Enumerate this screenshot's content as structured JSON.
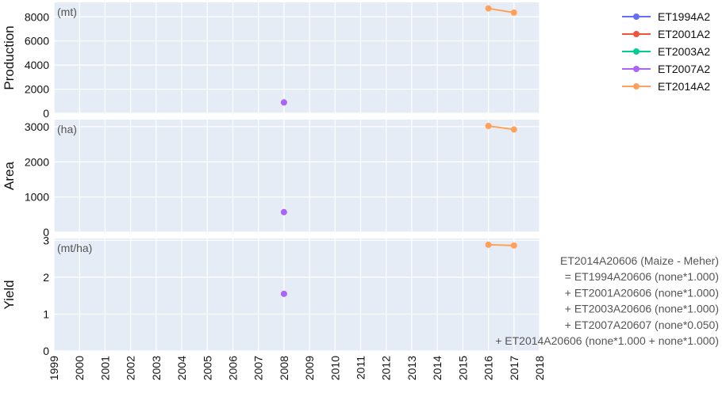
{
  "chart_data": {
    "type": "scatter",
    "x_ticks": [
      "1999",
      "2000",
      "2001",
      "2002",
      "2003",
      "2004",
      "2005",
      "2006",
      "2007",
      "2008",
      "2009",
      "2010",
      "2011",
      "2012",
      "2013",
      "2014",
      "2015",
      "2016",
      "2017",
      "2018"
    ],
    "xlim": [
      1999,
      2018
    ],
    "legend": {
      "position": "top-right",
      "entries": [
        {
          "name": "ET1994A2",
          "color": "#636efa"
        },
        {
          "name": "ET2001A2",
          "color": "#ef553b"
        },
        {
          "name": "ET2003A2",
          "color": "#00cc96"
        },
        {
          "name": "ET2007A2",
          "color": "#ab63fa"
        },
        {
          "name": "ET2014A2",
          "color": "#ffa15a"
        }
      ]
    },
    "panels": [
      {
        "ylabel": "Production",
        "unit": "(mt)",
        "ylim": [
          0,
          9200
        ],
        "yticks": [
          0,
          2000,
          4000,
          6000,
          8000
        ],
        "ytick_labels": [
          "0",
          "2000",
          "4000",
          "6000",
          "8000"
        ],
        "series": [
          {
            "name": "ET2007A2",
            "color": "#ab63fa",
            "x": [
              2008
            ],
            "y": [
              900
            ]
          },
          {
            "name": "ET2014A2",
            "color": "#ffa15a",
            "x": [
              2016,
              2017
            ],
            "y": [
              8700,
              8350
            ]
          }
        ]
      },
      {
        "ylabel": "Area",
        "unit": "(ha)",
        "ylim": [
          0,
          3200
        ],
        "yticks": [
          0,
          1000,
          2000,
          3000
        ],
        "ytick_labels": [
          "0",
          "1000",
          "2000",
          "3000"
        ],
        "series": [
          {
            "name": "ET2007A2",
            "color": "#ab63fa",
            "x": [
              2008
            ],
            "y": [
              570
            ]
          },
          {
            "name": "ET2014A2",
            "color": "#ffa15a",
            "x": [
              2016,
              2017
            ],
            "y": [
              3020,
              2920
            ]
          }
        ]
      },
      {
        "ylabel": "Yield",
        "unit": "(mt/ha)",
        "ylim": [
          0,
          3.05
        ],
        "yticks": [
          0,
          1,
          2,
          3
        ],
        "ytick_labels": [
          "0",
          "1",
          "2",
          "3"
        ],
        "series": [
          {
            "name": "ET2007A2",
            "color": "#ab63fa",
            "x": [
              2008
            ],
            "y": [
              1.55
            ]
          },
          {
            "name": "ET2014A2",
            "color": "#ffa15a",
            "x": [
              2016,
              2017
            ],
            "y": [
              2.88,
              2.86
            ]
          }
        ]
      }
    ],
    "annotation_lines": [
      "ET2014A20606 (Maize - Meher)",
      "= ET1994A20606 (none*1.000)",
      "+ ET2001A20606 (none*1.000)",
      "+ ET2003A20606 (none*1.000)",
      "+ ET2007A20607 (none*0.050)",
      "+ ET2014A20606 (none*1.000 + none*1.000)"
    ]
  }
}
